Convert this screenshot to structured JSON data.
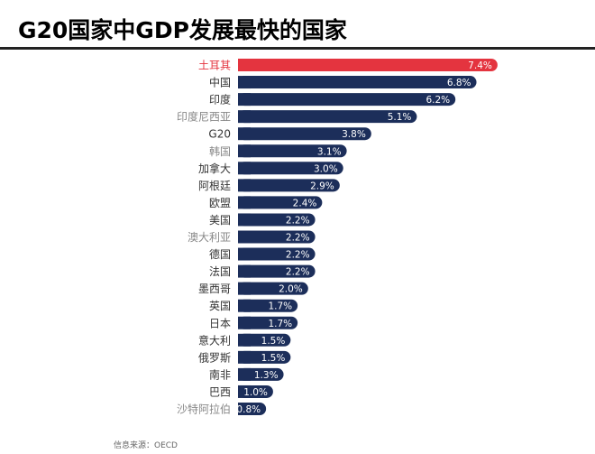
{
  "title": "G20国家中GDP发展最快的国家",
  "source": "信息来源：OECD",
  "colors": {
    "highlight": "#e4343f",
    "bar": "#1c2e5a",
    "label_highlight": "#e4343f",
    "label_normal": "#333333",
    "label_muted": "#888888"
  },
  "chart_data": {
    "type": "bar",
    "orientation": "horizontal",
    "categories": [
      "土耳其",
      "中国",
      "印度",
      "印度尼西亚",
      "G20",
      "韩国",
      "加拿大",
      "阿根廷",
      "欧盟",
      "美国",
      "澳大利亚",
      "德国",
      "法国",
      "墨西哥",
      "英国",
      "日本",
      "意大利",
      "俄罗斯",
      "南非",
      "巴西",
      "沙特阿拉伯"
    ],
    "values": [
      7.4,
      6.8,
      6.2,
      5.1,
      3.8,
      3.1,
      3.0,
      2.9,
      2.4,
      2.2,
      2.2,
      2.2,
      2.2,
      2.0,
      1.7,
      1.7,
      1.5,
      1.5,
      1.3,
      1.0,
      -0.8
    ],
    "value_labels": [
      "7.4%",
      "6.8%",
      "6.2%",
      "5.1%",
      "3.8%",
      "3.1%",
      "3.0%",
      "2.9%",
      "2.4%",
      "2.2%",
      "2.2%",
      "2.2%",
      "2.2%",
      "2.0%",
      "1.7%",
      "1.7%",
      "1.5%",
      "1.5%",
      "1.3%",
      "1.0%",
      "-0.8%"
    ],
    "highlight_index": 0,
    "muted_label_indices": [
      3,
      5,
      10,
      20
    ],
    "grid": false
  }
}
